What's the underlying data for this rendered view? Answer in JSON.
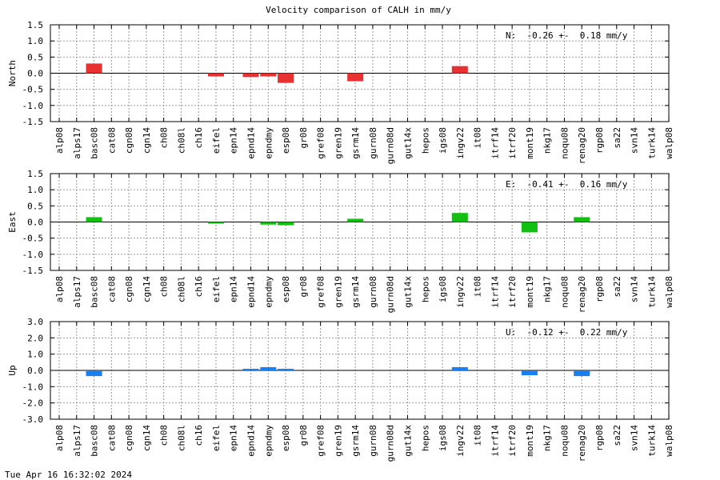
{
  "title": "Velocity comparison of CALH in mm/y",
  "timestamp": "Tue Apr 16 16:32:02 2024",
  "chart_data": [
    {
      "type": "bar",
      "component": "north",
      "ylabel": "North",
      "color": "#e83232",
      "ylim": [
        -1.5,
        1.5
      ],
      "yticks": [
        1.5,
        1.0,
        0.5,
        0.0,
        -0.5,
        -1.0,
        -1.5
      ],
      "ytick_labels": [
        "1.5",
        "1.0",
        "0.5",
        "0.0",
        "-0.5",
        "-1.0",
        "-1.5"
      ],
      "grid": true,
      "stat": "N:  -0.26 +-  0.18 mm/y",
      "categories": [
        "alp08",
        "alps17",
        "basc08",
        "cat08",
        "cgn08",
        "cgn14",
        "ch08",
        "ch08l",
        "ch16",
        "eifel",
        "epn14",
        "epnd14",
        "epndmy",
        "esp08",
        "gr08",
        "gref08",
        "gren19",
        "gsrm14",
        "gurn08",
        "gurn08d",
        "gut14x",
        "hepos",
        "igs08",
        "ingv22",
        "it08",
        "itrf14",
        "itrf20",
        "mont19",
        "nkg17",
        "noqu08",
        "renag20",
        "rgp08",
        "sa22",
        "svn14",
        "turk14",
        "walp08"
      ],
      "values": [
        0,
        0,
        0.3,
        0,
        0,
        0,
        0,
        0,
        0,
        -0.1,
        0,
        -0.12,
        -0.1,
        -0.3,
        0,
        0,
        0,
        -0.25,
        0,
        0,
        0,
        0,
        0,
        0.22,
        0,
        0,
        0,
        0,
        0,
        0,
        0,
        0,
        0,
        0,
        0,
        0
      ]
    },
    {
      "type": "bar",
      "component": "east",
      "ylabel": "East",
      "color": "#11c011",
      "ylim": [
        -1.5,
        1.5
      ],
      "yticks": [
        1.5,
        1.0,
        0.5,
        0.0,
        -0.5,
        -1.0,
        -1.5
      ],
      "ytick_labels": [
        "1.5",
        "1.0",
        "0.5",
        "0.0",
        "-0.5",
        "-1.0",
        "-1.5"
      ],
      "grid": true,
      "stat": "E:  -0.41 +-  0.16 mm/y",
      "categories": [
        "alp08",
        "alps17",
        "basc08",
        "cat08",
        "cgn08",
        "cgn14",
        "ch08",
        "ch08l",
        "ch16",
        "eifel",
        "epn14",
        "epnd14",
        "epndmy",
        "esp08",
        "gr08",
        "gref08",
        "gren19",
        "gsrm14",
        "gurn08",
        "gurn08d",
        "gut14x",
        "hepos",
        "igs08",
        "ingv22",
        "it08",
        "itrf14",
        "itrf20",
        "mont19",
        "nkg17",
        "noqu08",
        "renag20",
        "rgp08",
        "sa22",
        "svn14",
        "turk14",
        "walp08"
      ],
      "values": [
        0,
        0,
        0.15,
        0,
        0,
        0,
        0,
        0,
        0,
        -0.05,
        0,
        0,
        -0.08,
        -0.1,
        0,
        0,
        0,
        0.1,
        0,
        0,
        0,
        0,
        0,
        0.28,
        0,
        0,
        0,
        -0.32,
        0,
        0,
        0.15,
        0,
        0,
        0,
        0,
        0
      ]
    },
    {
      "type": "bar",
      "component": "up",
      "ylabel": "Up",
      "color": "#1a7ff0",
      "ylim": [
        -3.0,
        3.0
      ],
      "yticks": [
        3.0,
        2.0,
        1.0,
        0.0,
        -1.0,
        -2.0,
        -3.0
      ],
      "ytick_labels": [
        "3.0",
        "2.0",
        "1.0",
        "0.0",
        "-1.0",
        "-2.0",
        "-3.0"
      ],
      "grid": true,
      "stat": "U:  -0.12 +-  0.22 mm/y",
      "categories": [
        "alp08",
        "alps17",
        "basc08",
        "cat08",
        "cgn08",
        "cgn14",
        "ch08",
        "ch08l",
        "ch16",
        "eifel",
        "epn14",
        "epnd14",
        "epndmy",
        "esp08",
        "gr08",
        "gref08",
        "gren19",
        "gsrm14",
        "gurn08",
        "gurn08d",
        "gut14x",
        "hepos",
        "igs08",
        "ingv22",
        "it08",
        "itrf14",
        "itrf20",
        "mont19",
        "nkg17",
        "noqu08",
        "renag20",
        "rgp08",
        "sa22",
        "svn14",
        "turk14",
        "walp08"
      ],
      "values": [
        0,
        0,
        -0.35,
        0,
        0,
        0,
        0,
        0,
        0,
        0,
        0,
        0.1,
        0.2,
        0.1,
        0,
        0,
        0,
        0,
        0,
        0,
        0,
        0,
        0,
        0.2,
        0,
        0,
        0,
        -0.3,
        0,
        0,
        -0.35,
        0,
        0,
        0,
        0,
        0
      ]
    }
  ]
}
